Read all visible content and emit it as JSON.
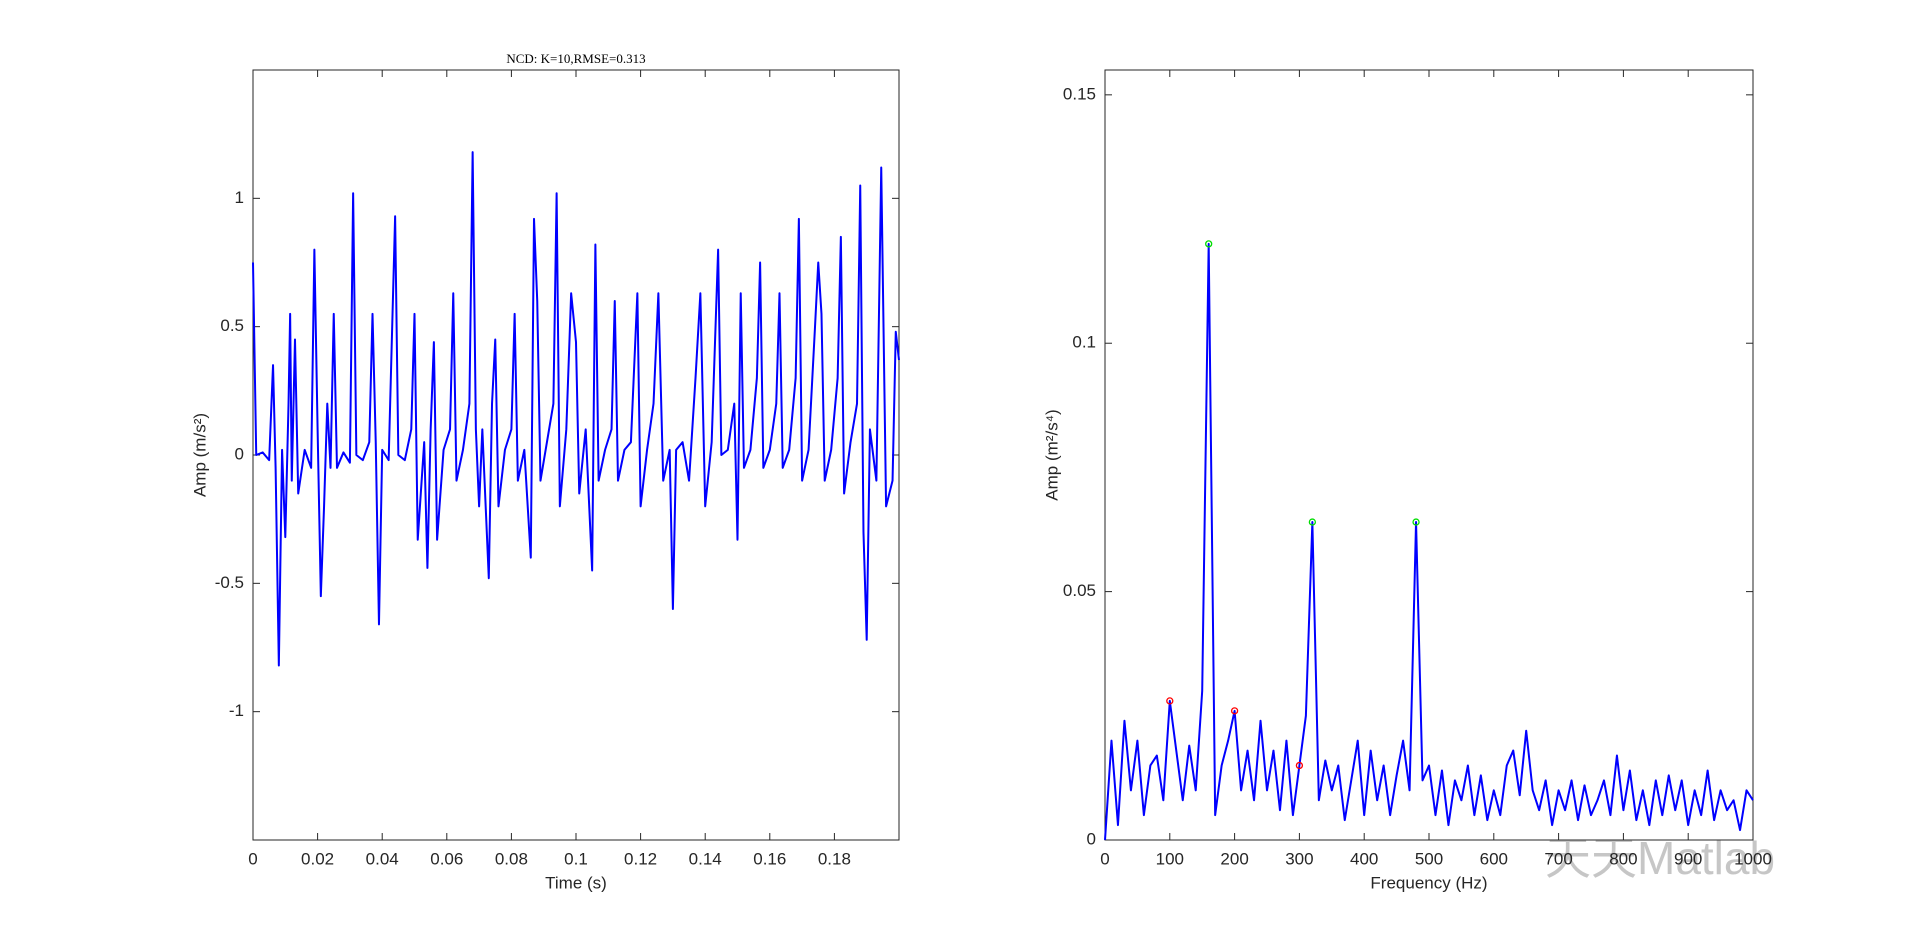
{
  "chart_data": [
    {
      "type": "line",
      "title": "NCD: K=10,RMSE=0.313",
      "xlabel": "Time (s)",
      "ylabel": "Amp (m/s²)",
      "color": "#0000ff",
      "xlim": [
        0,
        0.2
      ],
      "ylim": [
        -1.5,
        1.5
      ],
      "xticks": [
        0,
        0.02,
        0.04,
        0.06,
        0.08,
        0.1,
        0.12,
        0.14,
        0.16,
        0.18
      ],
      "yticks": [
        -1,
        -0.5,
        0,
        0.5,
        1
      ],
      "x": [
        0,
        0.001,
        0.003,
        0.005,
        0.0062,
        0.007,
        0.008,
        0.009,
        0.01,
        0.011,
        0.0115,
        0.012,
        0.013,
        0.014,
        0.016,
        0.018,
        0.019,
        0.02,
        0.021,
        0.022,
        0.023,
        0.024,
        0.025,
        0.026,
        0.028,
        0.03,
        0.031,
        0.032,
        0.034,
        0.036,
        0.037,
        0.038,
        0.039,
        0.04,
        0.042,
        0.044,
        0.045,
        0.047,
        0.049,
        0.05,
        0.051,
        0.053,
        0.054,
        0.055,
        0.056,
        0.057,
        0.059,
        0.061,
        0.062,
        0.063,
        0.065,
        0.067,
        0.068,
        0.069,
        0.07,
        0.071,
        0.073,
        0.074,
        0.075,
        0.076,
        0.078,
        0.08,
        0.081,
        0.082,
        0.084,
        0.086,
        0.087,
        0.088,
        0.089,
        0.091,
        0.093,
        0.094,
        0.095,
        0.097,
        0.0985,
        0.1,
        0.101,
        0.103,
        0.105,
        0.106,
        0.107,
        0.109,
        0.111,
        0.112,
        0.113,
        0.115,
        0.117,
        0.119,
        0.12,
        0.122,
        0.124,
        0.1255,
        0.127,
        0.129,
        0.13,
        0.131,
        0.133,
        0.135,
        0.137,
        0.1385,
        0.14,
        0.142,
        0.144,
        0.145,
        0.147,
        0.149,
        0.15,
        0.151,
        0.152,
        0.154,
        0.156,
        0.157,
        0.158,
        0.16,
        0.162,
        0.163,
        0.164,
        0.166,
        0.168,
        0.169,
        0.17,
        0.172,
        0.174,
        0.175,
        0.176,
        0.177,
        0.179,
        0.181,
        0.182,
        0.183,
        0.185,
        0.187,
        0.188,
        0.189,
        0.19,
        0.191,
        0.193,
        0.1945,
        0.196,
        0.198,
        0.199,
        0.2
      ],
      "values": [
        0.75,
        0,
        0.01,
        -0.02,
        0.35,
        -0.05,
        -0.82,
        0.02,
        -0.32,
        0.2,
        0.55,
        -0.1,
        0.45,
        -0.15,
        0.02,
        -0.05,
        0.8,
        0.1,
        -0.55,
        -0.2,
        0.2,
        -0.05,
        0.55,
        -0.05,
        0.01,
        -0.03,
        1.02,
        0,
        -0.02,
        0.05,
        0.55,
        0.05,
        -0.66,
        0.02,
        -0.02,
        0.93,
        0,
        -0.02,
        0.1,
        0.55,
        -0.33,
        0.05,
        -0.44,
        0.1,
        0.44,
        -0.33,
        0.02,
        0.1,
        0.63,
        -0.1,
        0.02,
        0.2,
        1.18,
        0.1,
        -0.2,
        0.1,
        -0.48,
        0.2,
        0.45,
        -0.2,
        0.02,
        0.1,
        0.55,
        -0.1,
        0.02,
        -0.4,
        0.92,
        0.6,
        -0.1,
        0.05,
        0.2,
        1.02,
        -0.2,
        0.1,
        0.63,
        0.44,
        -0.15,
        0.1,
        -0.45,
        0.82,
        -0.1,
        0.02,
        0.1,
        0.6,
        -0.1,
        0.02,
        0.05,
        0.63,
        -0.2,
        0.02,
        0.2,
        0.63,
        -0.1,
        0.02,
        -0.6,
        0.02,
        0.05,
        -0.1,
        0.3,
        0.63,
        -0.2,
        0.05,
        0.8,
        0,
        0.02,
        0.2,
        -0.33,
        0.63,
        -0.05,
        0.02,
        0.3,
        0.75,
        -0.05,
        0.02,
        0.2,
        0.63,
        -0.05,
        0.02,
        0.3,
        0.92,
        -0.1,
        0.02,
        0.5,
        0.75,
        0.55,
        -0.1,
        0.02,
        0.3,
        0.85,
        -0.15,
        0.05,
        0.2,
        1.05,
        -0.3,
        -0.72,
        0.1,
        -0.1,
        1.12,
        -0.2,
        -0.1,
        0.48,
        0.37
      ]
    },
    {
      "type": "line",
      "xlabel": "Frequency (Hz)",
      "ylabel": "Amp (m²/s⁴)",
      "color": "#0000ff",
      "xlim": [
        0,
        1000
      ],
      "ylim": [
        0,
        0.155
      ],
      "xticks": [
        0,
        100,
        200,
        300,
        400,
        500,
        600,
        700,
        800,
        900,
        1000
      ],
      "yticks": [
        0,
        0.05,
        0.1,
        0.15
      ],
      "x": [
        0,
        10,
        20,
        30,
        40,
        50,
        60,
        70,
        80,
        90,
        100,
        110,
        120,
        130,
        140,
        150,
        160,
        170,
        180,
        190,
        200,
        210,
        220,
        230,
        240,
        250,
        260,
        270,
        280,
        290,
        300,
        310,
        320,
        330,
        340,
        350,
        360,
        370,
        380,
        390,
        400,
        410,
        420,
        430,
        440,
        450,
        460,
        470,
        480,
        490,
        500,
        510,
        520,
        530,
        540,
        550,
        560,
        570,
        580,
        590,
        600,
        610,
        620,
        630,
        640,
        650,
        660,
        670,
        680,
        690,
        700,
        710,
        720,
        730,
        740,
        750,
        760,
        770,
        780,
        790,
        800,
        810,
        820,
        830,
        840,
        850,
        860,
        870,
        880,
        890,
        900,
        910,
        920,
        930,
        940,
        950,
        960,
        970,
        980,
        990,
        1000
      ],
      "values": [
        0,
        0.02,
        0.003,
        0.024,
        0.01,
        0.02,
        0.005,
        0.015,
        0.017,
        0.008,
        0.028,
        0.018,
        0.008,
        0.019,
        0.01,
        0.03,
        0.12,
        0.005,
        0.015,
        0.02,
        0.026,
        0.01,
        0.018,
        0.008,
        0.024,
        0.01,
        0.018,
        0.006,
        0.02,
        0.005,
        0.015,
        0.025,
        0.064,
        0.008,
        0.016,
        0.01,
        0.015,
        0.004,
        0.012,
        0.02,
        0.005,
        0.018,
        0.008,
        0.015,
        0.005,
        0.013,
        0.02,
        0.01,
        0.064,
        0.012,
        0.015,
        0.005,
        0.014,
        0.003,
        0.012,
        0.008,
        0.015,
        0.005,
        0.013,
        0.004,
        0.01,
        0.005,
        0.015,
        0.018,
        0.009,
        0.022,
        0.01,
        0.006,
        0.012,
        0.003,
        0.01,
        0.006,
        0.012,
        0.004,
        0.011,
        0.005,
        0.008,
        0.012,
        0.005,
        0.017,
        0.006,
        0.014,
        0.004,
        0.01,
        0.003,
        0.012,
        0.005,
        0.013,
        0.006,
        0.012,
        0.003,
        0.01,
        0.005,
        0.014,
        0.004,
        0.01,
        0.006,
        0.008,
        0.002,
        0.01,
        0.008
      ],
      "peaks": {
        "x": [
          160,
          320,
          480
        ],
        "values": [
          0.12,
          0.064,
          0.064
        ],
        "color": "#00dd00"
      },
      "harmonics": {
        "x": [
          100,
          200,
          300
        ],
        "values": [
          0.028,
          0.026,
          0.015
        ],
        "color": "#ff0000"
      }
    }
  ],
  "watermark": "天天Matlab"
}
